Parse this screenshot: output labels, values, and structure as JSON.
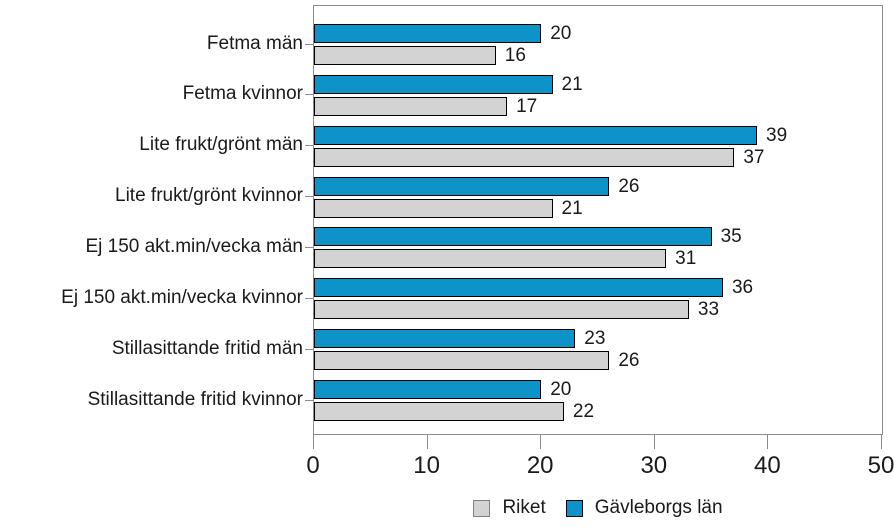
{
  "chart_data": {
    "type": "bar",
    "orientation": "horizontal",
    "title": "",
    "xlabel": "",
    "ylabel": "",
    "categories": [
      "Fetma män",
      "Fetma kvinnor",
      "Lite frukt/grönt män",
      "Lite frukt/grönt kvinnor",
      "Ej 150 akt.min/vecka män",
      "Ej 150 akt.min/vecka kvinnor",
      "Stillasittande fritid män",
      "Stillasittande fritid kvinnor"
    ],
    "series": [
      {
        "name": "Gävleborgs län",
        "color": "#0D93C8",
        "values": [
          20,
          21,
          39,
          26,
          35,
          36,
          23,
          20
        ]
      },
      {
        "name": "Riket",
        "color": "#D3D3D3",
        "values": [
          16,
          17,
          37,
          21,
          31,
          33,
          26,
          22
        ]
      }
    ],
    "xlim": [
      0,
      50
    ],
    "x_ticks": [
      0,
      10,
      20,
      30,
      40,
      50
    ],
    "grid": false,
    "data_labels": true,
    "legend_position": "bottom"
  },
  "legend": {
    "items": [
      {
        "label": "Riket",
        "color": "#D3D3D3",
        "border": "#808080"
      },
      {
        "label": "Gävleborgs län",
        "color": "#0D93C8",
        "border": "#000000"
      }
    ]
  },
  "colors": {
    "bar_border": "#000000",
    "plot_border": "#8c8c8c",
    "axis": "#8c8c8c",
    "text": "#1a1a1a",
    "background": "#ffffff"
  }
}
